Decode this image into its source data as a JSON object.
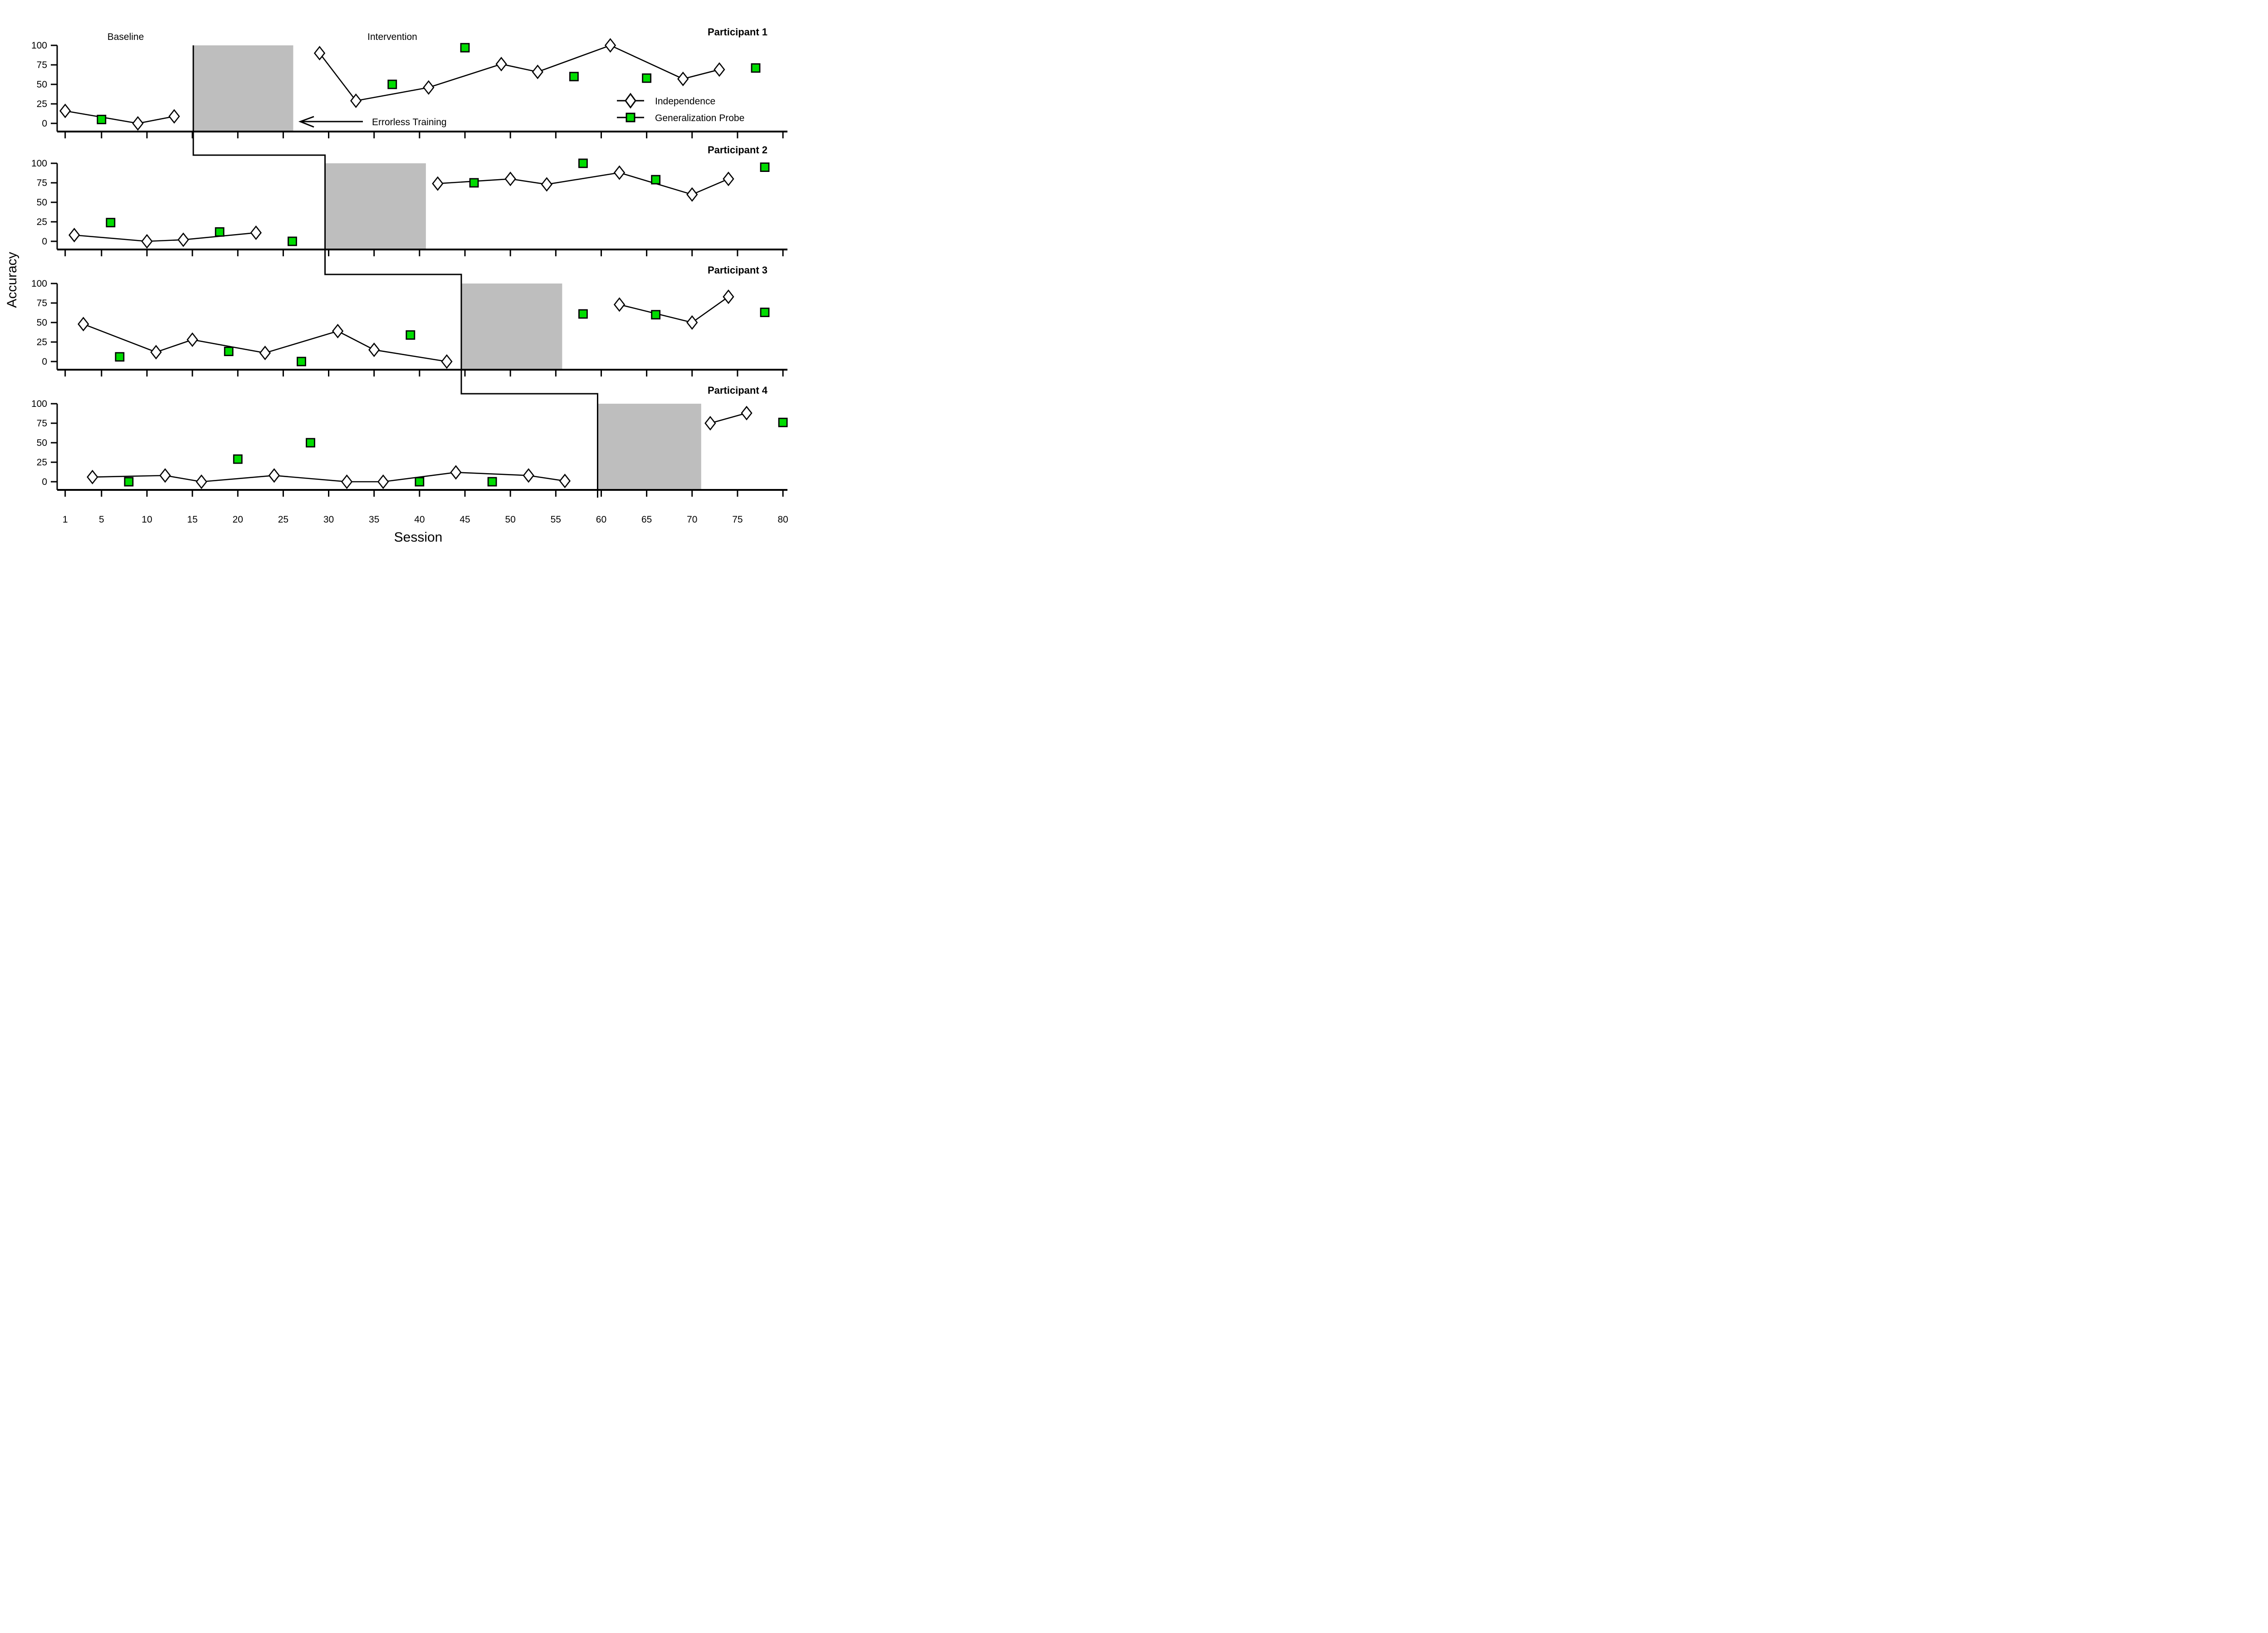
{
  "figure": {
    "y_axis_label": "Accuracy",
    "x_axis_label": "Session",
    "phase_labels": {
      "baseline": "Baseline",
      "intervention": "Intervention"
    },
    "annotation": {
      "text": "Errorless Training",
      "arrow_direction": "left"
    },
    "legend": [
      {
        "label": "Independence",
        "marker": "diamond-icon"
      },
      {
        "label": "Generalization Probe",
        "marker": "green-square-icon"
      }
    ],
    "colors": {
      "probe_green": "#00DC00",
      "shade_gray": "#BEBEBE",
      "line_black": "#000000",
      "background": "#FFFFFF"
    }
  },
  "chart_data": {
    "type": "line",
    "title": "",
    "xlabel": "Session",
    "ylabel": "Accuracy",
    "x_ticks": [
      1,
      5,
      10,
      15,
      20,
      25,
      30,
      35,
      40,
      45,
      50,
      55,
      60,
      65,
      70,
      75,
      80
    ],
    "y_ticks": [
      0,
      25,
      50,
      75,
      100
    ],
    "xlim": [
      0,
      81
    ],
    "ylim": [
      0,
      100
    ],
    "grid": false,
    "legend_position": "upper-right-of-first-panel",
    "series_names": [
      "Independence",
      "Generalization Probe"
    ],
    "shaded_region_label": "Errorless Training",
    "panels": [
      {
        "title": "Participant 1",
        "shaded_region_sessions": [
          15.1,
          26.1
        ],
        "independence_baseline": [
          [
            1,
            16
          ],
          [
            9,
            0
          ],
          [
            13,
            9
          ]
        ],
        "probes_baseline": [
          [
            5,
            5
          ]
        ],
        "independence_intervention": [
          [
            29,
            90
          ],
          [
            33,
            29
          ],
          [
            41,
            46
          ],
          [
            49,
            76
          ],
          [
            53,
            66
          ],
          [
            61,
            100
          ],
          [
            69,
            57
          ],
          [
            73,
            69
          ]
        ],
        "probes_intervention": [
          [
            37,
            50
          ],
          [
            45,
            97
          ],
          [
            57,
            60
          ],
          [
            65,
            58
          ],
          [
            77,
            71
          ]
        ]
      },
      {
        "title": "Participant 2",
        "shaded_region_sessions": [
          29.6,
          40.7
        ],
        "independence_baseline": [
          [
            2,
            8
          ],
          [
            10,
            0
          ],
          [
            14,
            2
          ],
          [
            22,
            11
          ]
        ],
        "probes_baseline": [
          [
            6,
            24
          ],
          [
            18,
            12
          ],
          [
            26,
            0
          ]
        ],
        "independence_intervention": [
          [
            42,
            74
          ],
          [
            50,
            80
          ],
          [
            54,
            73
          ],
          [
            62,
            88
          ],
          [
            70,
            60
          ],
          [
            74,
            80
          ]
        ],
        "probes_intervention": [
          [
            46,
            75
          ],
          [
            58,
            100
          ],
          [
            66,
            79
          ],
          [
            78,
            95
          ]
        ]
      },
      {
        "title": "Participant 3",
        "shaded_region_sessions": [
          44.6,
          55.7
        ],
        "independence_baseline": [
          [
            3,
            48
          ],
          [
            11,
            12
          ],
          [
            15,
            28
          ],
          [
            23,
            11
          ],
          [
            31,
            39
          ],
          [
            35,
            15
          ],
          [
            43,
            0
          ]
        ],
        "probes_baseline": [
          [
            7,
            6
          ],
          [
            19,
            13
          ],
          [
            27,
            0
          ],
          [
            39,
            34
          ]
        ],
        "independence_intervention": [
          [
            62,
            73
          ],
          [
            70,
            50
          ],
          [
            74,
            83
          ]
        ],
        "probes_intervention": [
          [
            58,
            61
          ],
          [
            66,
            60
          ],
          [
            78,
            63
          ]
        ]
      },
      {
        "title": "Participant 4",
        "shaded_region_sessions": [
          59.6,
          71.0
        ],
        "independence_baseline": [
          [
            4,
            6
          ],
          [
            12,
            8
          ],
          [
            16,
            0
          ],
          [
            24,
            8
          ],
          [
            32,
            0
          ],
          [
            36,
            0
          ],
          [
            44,
            12
          ],
          [
            52,
            8
          ],
          [
            56,
            1
          ]
        ],
        "probes_baseline": [
          [
            8,
            0
          ],
          [
            20,
            29
          ],
          [
            28,
            50
          ],
          [
            40,
            0
          ],
          [
            48,
            0
          ]
        ],
        "independence_intervention": [
          [
            72,
            75
          ],
          [
            76,
            88
          ]
        ],
        "probes_intervention": [
          [
            80,
            76
          ]
        ]
      }
    ],
    "phase_change_step_line_sessions": [
      15.1,
      29.6,
      44.6,
      59.6
    ]
  }
}
